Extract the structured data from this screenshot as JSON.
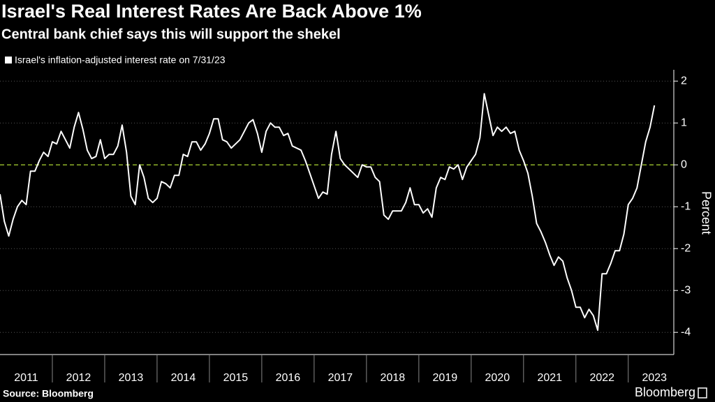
{
  "chart_data": {
    "type": "line",
    "title": "Israel's Real Interest Rates Are Back Above 1%",
    "subtitle": "Central bank chief says this will support the shekel",
    "y_label": "Percent",
    "source": "Source: Bloomberg",
    "brand": "Bloomberg",
    "grid": true,
    "zero_line_color": "#8fb32a",
    "xlim": [
      2011,
      2023.87
    ],
    "xticks": [
      2011,
      2012,
      2013,
      2014,
      2015,
      2016,
      2017,
      2018,
      2019,
      2020,
      2021,
      2022,
      2023
    ],
    "ylim": [
      -4.53,
      2.27
    ],
    "yticks": [
      -4,
      -3,
      -2,
      -1,
      0,
      1,
      2
    ],
    "x": [
      2011,
      2011.083,
      2011.167,
      2011.25,
      2011.333,
      2011.417,
      2011.5,
      2011.583,
      2011.667,
      2011.75,
      2011.833,
      2011.917,
      2012,
      2012.083,
      2012.167,
      2012.25,
      2012.333,
      2012.417,
      2012.5,
      2012.583,
      2012.667,
      2012.75,
      2012.833,
      2012.917,
      2013,
      2013.083,
      2013.167,
      2013.25,
      2013.333,
      2013.417,
      2013.5,
      2013.583,
      2013.667,
      2013.75,
      2013.833,
      2013.917,
      2014,
      2014.083,
      2014.167,
      2014.25,
      2014.333,
      2014.417,
      2014.5,
      2014.583,
      2014.667,
      2014.75,
      2014.833,
      2014.917,
      2015,
      2015.083,
      2015.167,
      2015.25,
      2015.333,
      2015.417,
      2015.5,
      2015.583,
      2015.667,
      2015.75,
      2015.833,
      2015.917,
      2016,
      2016.083,
      2016.167,
      2016.25,
      2016.333,
      2016.417,
      2016.5,
      2016.583,
      2016.667,
      2016.75,
      2016.833,
      2016.917,
      2017,
      2017.083,
      2017.167,
      2017.25,
      2017.333,
      2017.417,
      2017.5,
      2017.583,
      2017.667,
      2017.75,
      2017.833,
      2017.917,
      2018,
      2018.083,
      2018.167,
      2018.25,
      2018.333,
      2018.417,
      2018.5,
      2018.583,
      2018.667,
      2018.75,
      2018.833,
      2018.917,
      2019,
      2019.083,
      2019.167,
      2019.25,
      2019.333,
      2019.417,
      2019.5,
      2019.583,
      2019.667,
      2019.75,
      2019.833,
      2019.917,
      2020,
      2020.083,
      2020.167,
      2020.25,
      2020.333,
      2020.417,
      2020.5,
      2020.583,
      2020.667,
      2020.75,
      2020.833,
      2020.917,
      2021,
      2021.083,
      2021.167,
      2021.25,
      2021.333,
      2021.417,
      2021.5,
      2021.583,
      2021.667,
      2021.75,
      2021.833,
      2021.917,
      2022,
      2022.083,
      2022.167,
      2022.25,
      2022.333,
      2022.417,
      2022.5,
      2022.583,
      2022.667,
      2022.75,
      2022.833,
      2022.917,
      2023,
      2023.083,
      2023.167,
      2023.25,
      2023.333,
      2023.417,
      2023.5
    ],
    "series": [
      {
        "name": "Israel's inflation-adjusted interest rate on 7/31/23",
        "color": "#ffffff",
        "values": [
          -0.7,
          -1.35,
          -1.7,
          -1.3,
          -1.0,
          -0.85,
          -0.95,
          -0.15,
          -0.15,
          0.1,
          0.3,
          0.2,
          0.55,
          0.5,
          0.8,
          0.6,
          0.4,
          0.9,
          1.25,
          0.85,
          0.35,
          0.15,
          0.2,
          0.6,
          0.15,
          0.25,
          0.25,
          0.45,
          0.95,
          0.3,
          -0.75,
          -0.95,
          0,
          -0.3,
          -0.8,
          -0.9,
          -0.8,
          -0.4,
          -0.45,
          -0.55,
          -0.25,
          -0.25,
          0.25,
          0.2,
          0.55,
          0.55,
          0.35,
          0.5,
          0.75,
          1.1,
          1.1,
          0.6,
          0.55,
          0.4,
          0.5,
          0.6,
          0.8,
          1.0,
          1.08,
          0.75,
          0.3,
          0.8,
          1.0,
          0.9,
          0.9,
          0.7,
          0.75,
          0.45,
          0.4,
          0.35,
          0.1,
          -0.2,
          -0.5,
          -0.8,
          -0.65,
          -0.7,
          0.25,
          0.8,
          0.15,
          0,
          -0.1,
          -0.2,
          -0.3,
          0,
          -0.05,
          -0.05,
          -0.3,
          -0.4,
          -1.2,
          -1.3,
          -1.1,
          -1.1,
          -1.1,
          -0.9,
          -0.55,
          -0.95,
          -0.95,
          -1.15,
          -1.05,
          -1.25,
          -0.55,
          -0.3,
          -0.35,
          -0.05,
          -0.1,
          0,
          -0.35,
          -0.05,
          0.1,
          0.25,
          0.65,
          1.7,
          1.2,
          0.7,
          0.9,
          0.8,
          0.9,
          0.75,
          0.8,
          0.35,
          0.1,
          -0.2,
          -0.75,
          -1.4,
          -1.6,
          -1.85,
          -2.15,
          -2.4,
          -2.2,
          -2.3,
          -2.7,
          -3.0,
          -3.4,
          -3.4,
          -3.65,
          -3.45,
          -3.6,
          -3.95,
          -2.6,
          -2.6,
          -2.35,
          -2.05,
          -2.05,
          -1.65,
          -0.95,
          -0.8,
          -0.55,
          0,
          0.55,
          0.9,
          1.42
        ]
      }
    ]
  }
}
